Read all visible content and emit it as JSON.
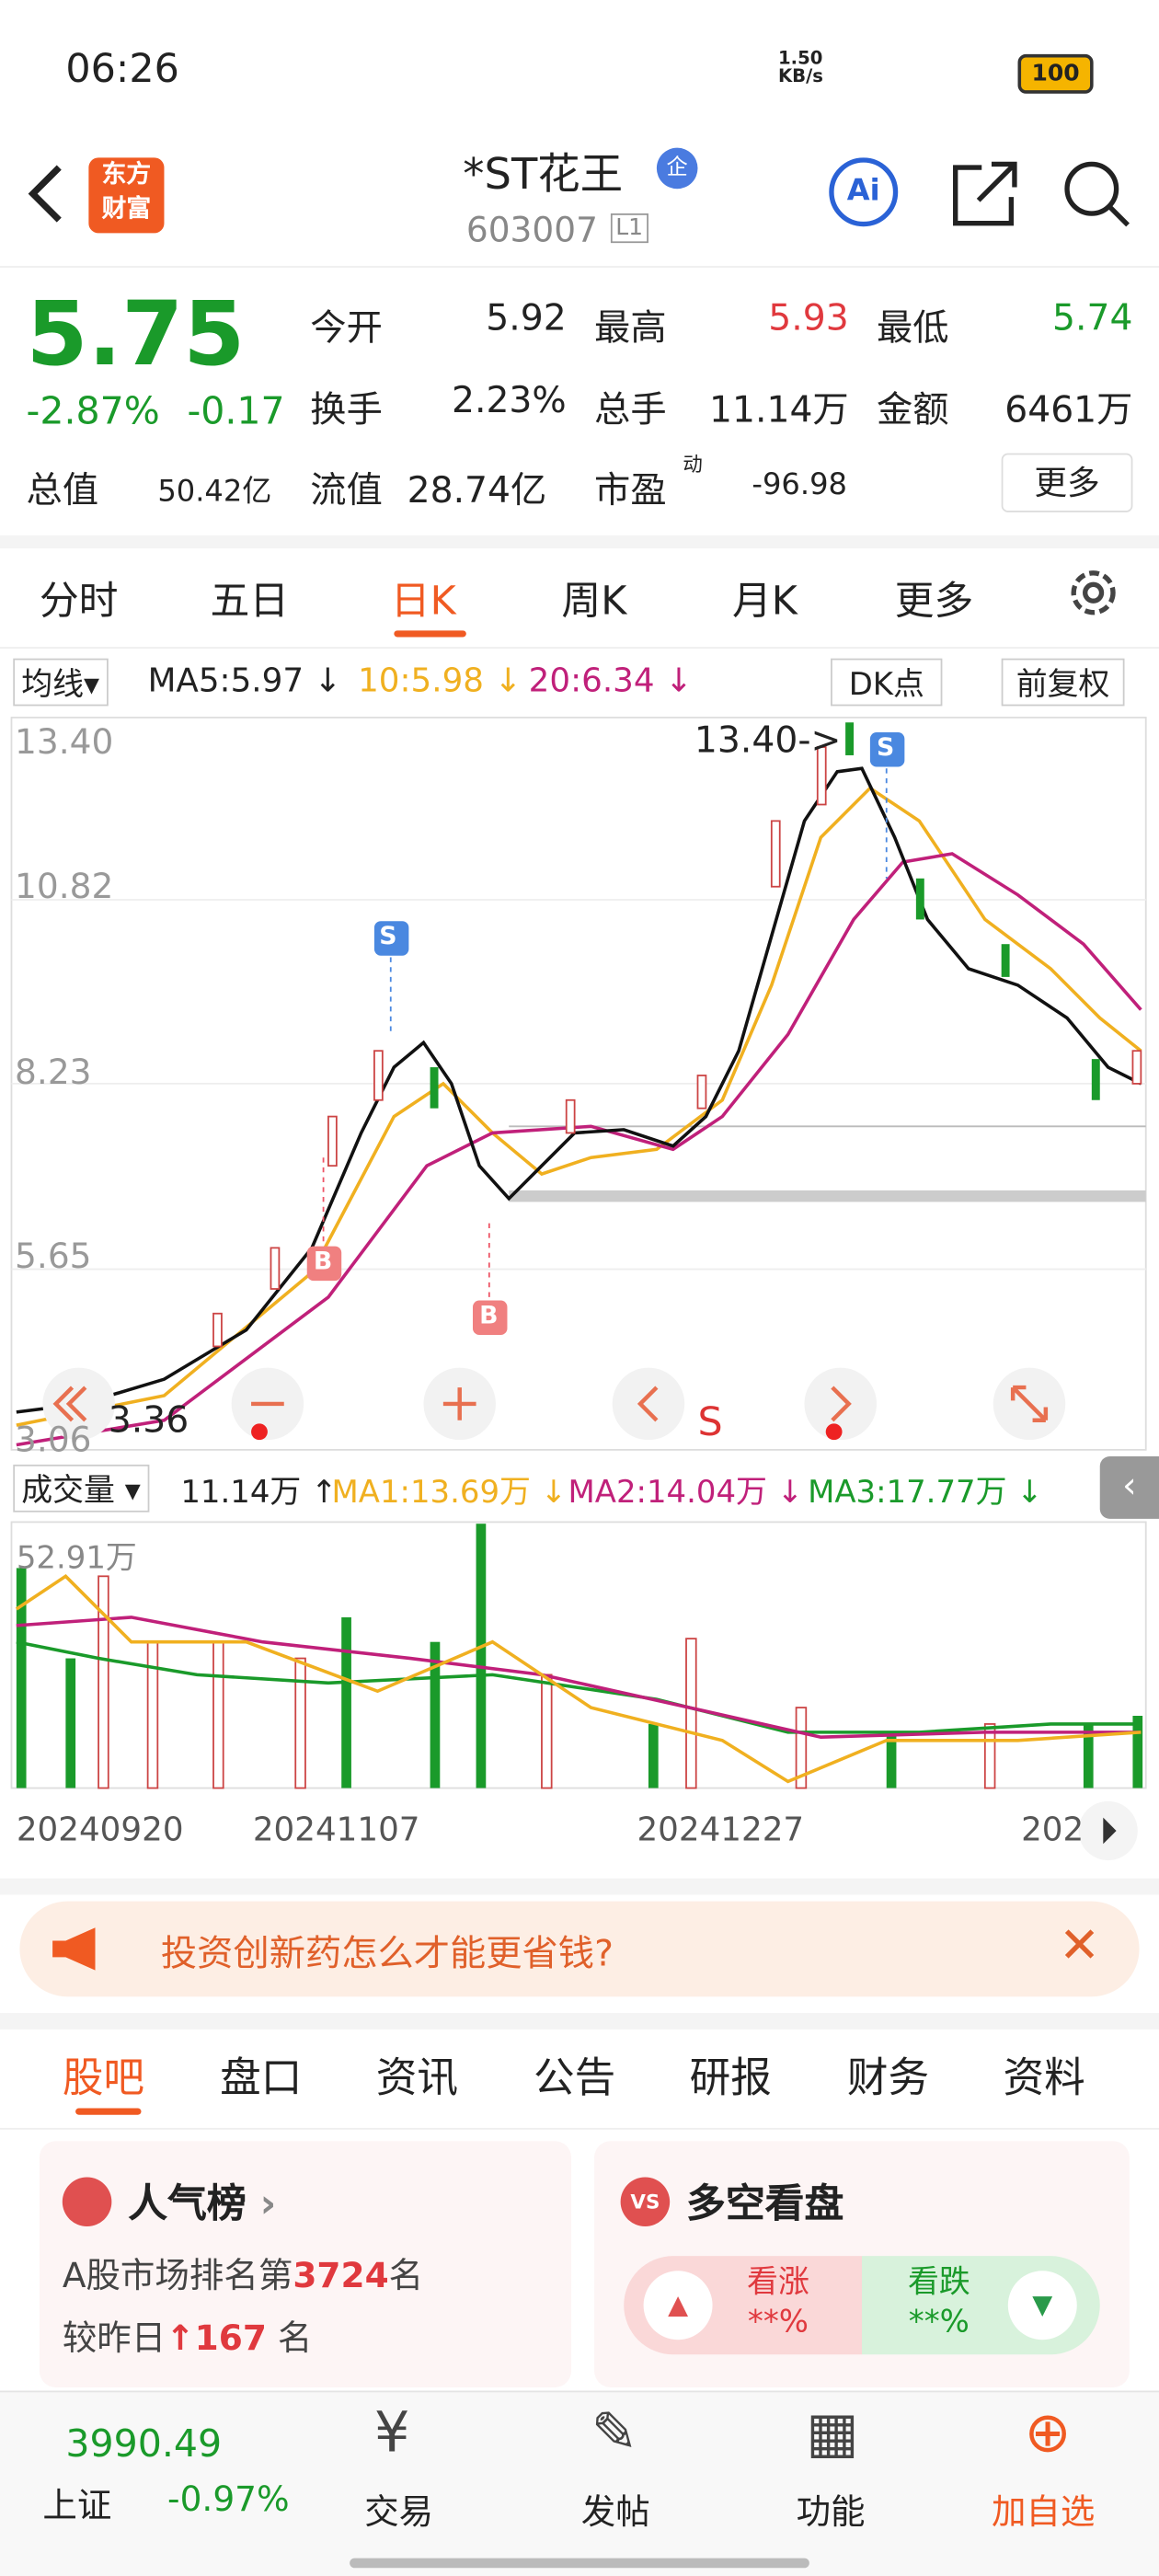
{
  "status": {
    "time": "06:26",
    "speed": "1.50",
    "speed_unit": "KB/s",
    "battery": "100"
  },
  "header": {
    "logo_top": "东方",
    "logo_bottom": "财富",
    "name": "*ST花王",
    "badge": "企",
    "code": "603007",
    "level": "L1"
  },
  "quote": {
    "price": "5.75",
    "change_pct": "-2.87%",
    "change": "-0.17",
    "stats": [
      {
        "label": "今开",
        "value": "5.92"
      },
      {
        "label": "最高",
        "value": "5.93"
      },
      {
        "label": "最低",
        "value": "5.74"
      },
      {
        "label": "换手",
        "value": "2.23%"
      },
      {
        "label": "总手",
        "value": "11.14万"
      },
      {
        "label": "金额",
        "value": "6461万"
      }
    ],
    "total_label": "总值",
    "total": "50.42亿",
    "float_label": "流值",
    "float": "28.74亿",
    "pe_label": "市盈",
    "pe_sup": "动",
    "pe": "-96.98",
    "more": "更多"
  },
  "tabs": [
    "分时",
    "五日",
    "日K",
    "周K",
    "月K",
    "更多"
  ],
  "ma": {
    "label": "均线",
    "ma5": "MA5:5.97 ↓",
    "ma10": "10:5.98 ↓",
    "ma20": "20:6.34 ↓",
    "dk": "DK点",
    "adjust": "前复权"
  },
  "price_axis": [
    "13.40",
    "10.82",
    "8.23",
    "5.65",
    "3.06"
  ],
  "annotations": {
    "high": "13.40->",
    "low": "3.36",
    "sell": "S",
    "buy": "B",
    "s_mark": "S"
  },
  "volume": {
    "label": "成交量",
    "vol": "11.14万 ↑",
    "ma1": "MA1:13.69万 ↓",
    "ma2": "MA2:14.04万 ↓",
    "ma3": "MA3:17.77万 ↓",
    "max": "52.91万"
  },
  "dates": [
    "20240920",
    "20241107",
    "20241227",
    "202"
  ],
  "ad": "投资创新药怎么才能更省钱?",
  "sections": [
    "股吧",
    "盘口",
    "资讯",
    "公告",
    "研报",
    "财务",
    "资料"
  ],
  "cards": {
    "rank_title": "人气榜",
    "rank_prefix": "A股市场排名第",
    "rank": "3724",
    "rank_suffix": "名",
    "change_prefix": "较昨日",
    "change": "167",
    "change_suffix": "名",
    "ls_title": "多空看盘",
    "up": "看涨",
    "up_val": "**%",
    "down": "看跌",
    "down_val": "**%"
  },
  "nav": {
    "index_value": "3990.49",
    "index_name": "上证",
    "index_change": "-0.97%",
    "items": [
      "交易",
      "发帖",
      "功能",
      "加自选"
    ]
  }
}
